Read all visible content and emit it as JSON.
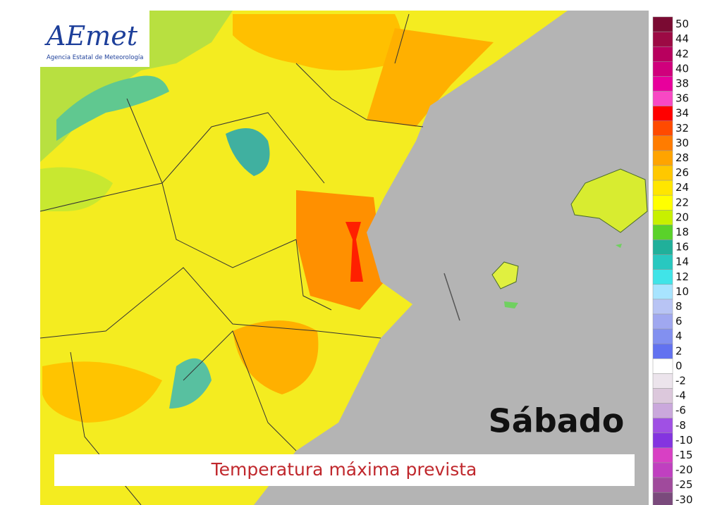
{
  "logo": {
    "mark": "AEmet",
    "name": "Agencia Estatal de Meteorología"
  },
  "day": "Sábado",
  "caption": "Temperatura máxima prevista",
  "legend": [
    {
      "value": 50,
      "color": "#7a0a32"
    },
    {
      "value": 44,
      "color": "#9c0a44"
    },
    {
      "value": 42,
      "color": "#b8005e"
    },
    {
      "value": 40,
      "color": "#d0007c"
    },
    {
      "value": 38,
      "color": "#e8009c"
    },
    {
      "value": 36,
      "color": "#f848c4"
    },
    {
      "value": 34,
      "color": "#ff0000"
    },
    {
      "value": 32,
      "color": "#ff4a00"
    },
    {
      "value": 30,
      "color": "#ff7c00"
    },
    {
      "value": 28,
      "color": "#ffa400"
    },
    {
      "value": 26,
      "color": "#ffc800"
    },
    {
      "value": 24,
      "color": "#ffe600"
    },
    {
      "value": 22,
      "color": "#ffff00"
    },
    {
      "value": 20,
      "color": "#c8f000"
    },
    {
      "value": 18,
      "color": "#5ad22a"
    },
    {
      "value": 16,
      "color": "#20b09a"
    },
    {
      "value": 14,
      "color": "#28c8c0"
    },
    {
      "value": 12,
      "color": "#40e4e8"
    },
    {
      "value": 10,
      "color": "#a8e4ff"
    },
    {
      "value": 8,
      "color": "#b8c4f4"
    },
    {
      "value": 6,
      "color": "#a0a8f0"
    },
    {
      "value": 4,
      "color": "#8290f0"
    },
    {
      "value": 2,
      "color": "#6272f0"
    },
    {
      "value": 0,
      "color": "#ffffff"
    },
    {
      "value": -2,
      "color": "#ece4ec"
    },
    {
      "value": -4,
      "color": "#dcc8dc"
    },
    {
      "value": -6,
      "color": "#caa8dc"
    },
    {
      "value": -8,
      "color": "#a050e4"
    },
    {
      "value": -10,
      "color": "#8434e0"
    },
    {
      "value": -15,
      "color": "#d840c4"
    },
    {
      "value": -20,
      "color": "#c040c0"
    },
    {
      "value": -25,
      "color": "#a04a9c"
    },
    {
      "value": -30,
      "color": "#7a4a7c"
    }
  ]
}
